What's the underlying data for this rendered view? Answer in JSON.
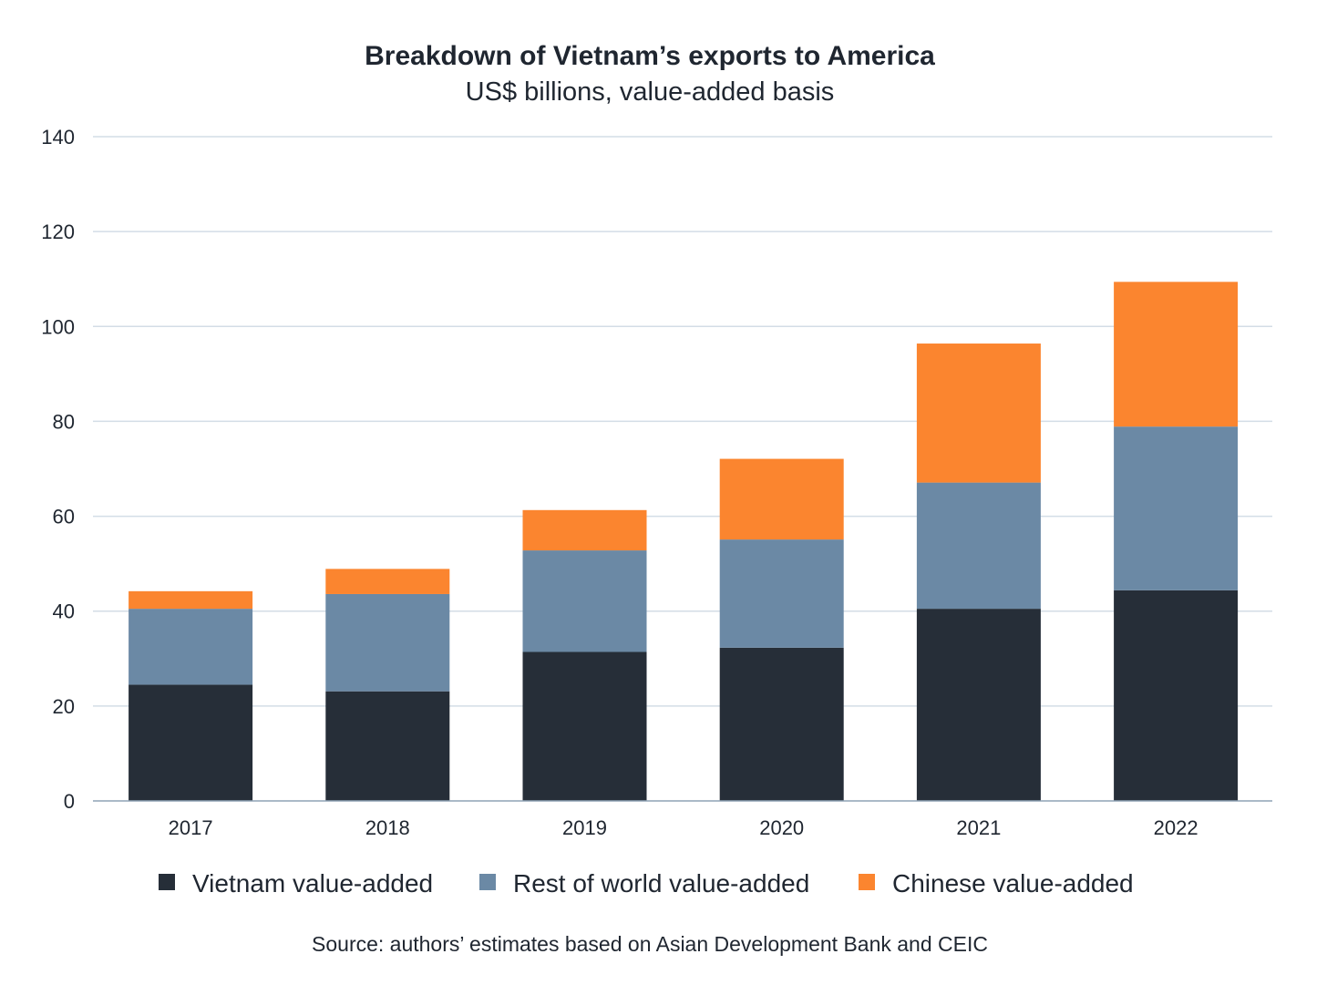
{
  "chart_data": {
    "type": "bar",
    "stacked": true,
    "title": "Breakdown of Vietnam’s exports to America",
    "subtitle": "US$ billions, value-added basis",
    "xlabel": "",
    "ylabel": "",
    "categories": [
      "2017",
      "2018",
      "2019",
      "2020",
      "2021",
      "2022"
    ],
    "ylim": [
      0,
      140
    ],
    "yticks": [
      0,
      20,
      40,
      60,
      80,
      100,
      120,
      140
    ],
    "grid": true,
    "legend_position": "bottom",
    "series": [
      {
        "name": "Vietnam value-added",
        "color": "#262e38",
        "values": [
          24.5,
          23.1,
          31.4,
          32.3,
          40.5,
          44.4
        ]
      },
      {
        "name": "Rest of world value-added",
        "color": "#6b89a5",
        "values": [
          16.0,
          20.5,
          21.4,
          22.8,
          26.6,
          34.5
        ]
      },
      {
        "name": "Chinese value-added",
        "color": "#fb852f",
        "values": [
          3.7,
          5.3,
          8.5,
          17.0,
          29.3,
          30.5
        ]
      }
    ],
    "source": "Source: authors’ estimates based on Asian Development Bank and CEIC"
  }
}
